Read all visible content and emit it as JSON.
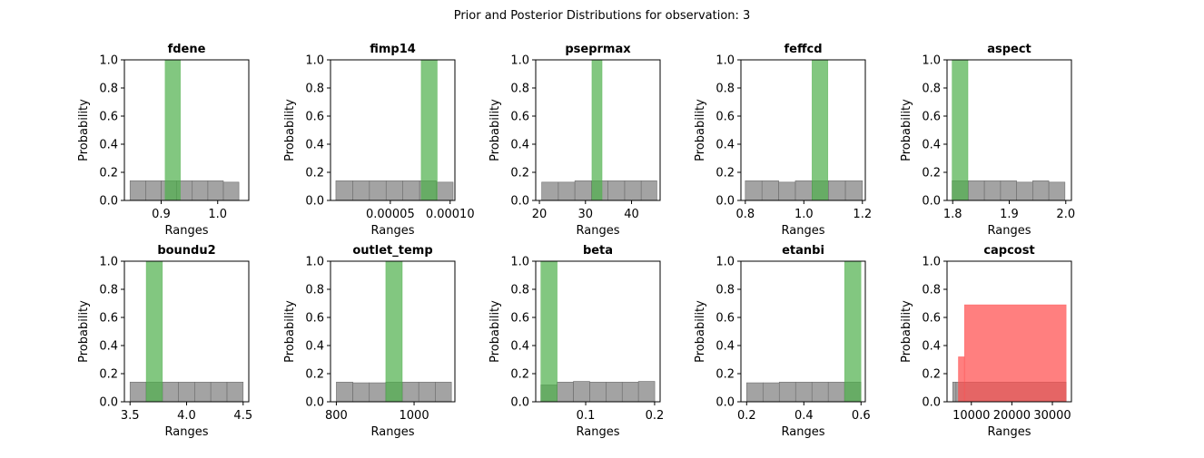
{
  "figure_title": "Prior and Posterior Distributions for observation: 3",
  "colors": {
    "prior": "#808080",
    "posterior_normal": "#4daf4a",
    "posterior_highlight": "#ff4d4d"
  },
  "chart_data": [
    {
      "type": "bar",
      "title": "fdene",
      "xlabel": "Ranges",
      "ylabel": "Probability",
      "xlim": [
        0.835,
        1.055
      ],
      "ylim": [
        0,
        1.0
      ],
      "xticks": [
        {
          "v": 0.9,
          "label": "0.9"
        },
        {
          "v": 1.0,
          "label": "1.0"
        }
      ],
      "yticks": [
        {
          "v": 0,
          "label": "0.0"
        },
        {
          "v": 0.2,
          "label": "0.2"
        },
        {
          "v": 0.4,
          "label": "0.4"
        },
        {
          "v": 0.6,
          "label": "0.6"
        },
        {
          "v": 0.8,
          "label": "0.8"
        },
        {
          "v": 1.0,
          "label": "1.0"
        }
      ],
      "prior": {
        "edges": [
          0.845,
          0.8725,
          0.9,
          0.9275,
          0.955,
          0.9825,
          1.01,
          1.0375
        ],
        "values": [
          0.14,
          0.14,
          0.14,
          0.14,
          0.14,
          0.14,
          0.13
        ]
      },
      "posterior": {
        "color": "normal",
        "edges": [
          0.907,
          0.934
        ],
        "values": [
          1.0
        ]
      }
    },
    {
      "type": "bar",
      "title": "fimp14",
      "xlabel": "Ranges",
      "ylabel": "Probability",
      "xlim": [
        0.0,
        0.000104
      ],
      "ylim": [
        0,
        1.0
      ],
      "xticks": [
        {
          "v": 5e-05,
          "label": "0.00005"
        },
        {
          "v": 0.0001,
          "label": "0.00010"
        }
      ],
      "yticks": [
        {
          "v": 0,
          "label": "0.0"
        },
        {
          "v": 0.2,
          "label": "0.2"
        },
        {
          "v": 0.4,
          "label": "0.4"
        },
        {
          "v": 0.6,
          "label": "0.6"
        },
        {
          "v": 0.8,
          "label": "0.8"
        },
        {
          "v": 1.0,
          "label": "1.0"
        }
      ],
      "prior": {
        "edges": [
          4.5e-06,
          1.85e-05,
          3.25e-05,
          4.65e-05,
          6.05e-05,
          7.45e-05,
          8.85e-05,
          0.0001025
        ],
        "values": [
          0.14,
          0.14,
          0.14,
          0.14,
          0.14,
          0.14,
          0.13
        ]
      },
      "posterior": {
        "color": "normal",
        "edges": [
          7.58e-05,
          8.92e-05
        ],
        "values": [
          1.0
        ]
      }
    },
    {
      "type": "bar",
      "title": "pseprmax",
      "xlabel": "Ranges",
      "ylabel": "Probability",
      "xlim": [
        19.2,
        46.2
      ],
      "ylim": [
        0,
        1.0
      ],
      "xticks": [
        {
          "v": 20,
          "label": "20"
        },
        {
          "v": 30,
          "label": "30"
        },
        {
          "v": 40,
          "label": "40"
        }
      ],
      "yticks": [
        {
          "v": 0,
          "label": "0.0"
        },
        {
          "v": 0.2,
          "label": "0.2"
        },
        {
          "v": 0.4,
          "label": "0.4"
        },
        {
          "v": 0.6,
          "label": "0.6"
        },
        {
          "v": 0.8,
          "label": "0.8"
        },
        {
          "v": 1.0,
          "label": "1.0"
        }
      ],
      "prior": {
        "edges": [
          20.5,
          24.1,
          27.7,
          31.3,
          34.9,
          38.5,
          42.1,
          45.5
        ],
        "values": [
          0.13,
          0.13,
          0.14,
          0.14,
          0.14,
          0.14,
          0.14
        ]
      },
      "posterior": {
        "color": "normal",
        "edges": [
          31.4,
          33.6
        ],
        "values": [
          1.0
        ]
      }
    },
    {
      "type": "bar",
      "title": "feffcd",
      "xlabel": "Ranges",
      "ylabel": "Probability",
      "xlim": [
        0.785,
        1.21
      ],
      "ylim": [
        0,
        1.0
      ],
      "xticks": [
        {
          "v": 0.8,
          "label": "0.8"
        },
        {
          "v": 1.0,
          "label": "1.0"
        },
        {
          "v": 1.2,
          "label": "1.2"
        }
      ],
      "yticks": [
        {
          "v": 0,
          "label": "0.0"
        },
        {
          "v": 0.2,
          "label": "0.2"
        },
        {
          "v": 0.4,
          "label": "0.4"
        },
        {
          "v": 0.6,
          "label": "0.6"
        },
        {
          "v": 0.8,
          "label": "0.8"
        },
        {
          "v": 1.0,
          "label": "1.0"
        }
      ],
      "prior": {
        "edges": [
          0.8,
          0.857,
          0.914,
          0.971,
          1.028,
          1.085,
          1.142,
          1.2
        ],
        "values": [
          0.14,
          0.14,
          0.13,
          0.14,
          0.14,
          0.14,
          0.14
        ]
      },
      "posterior": {
        "color": "normal",
        "edges": [
          1.028,
          1.082
        ],
        "values": [
          1.0
        ]
      }
    },
    {
      "type": "bar",
      "title": "aspect",
      "xlabel": "Ranges",
      "ylabel": "Probability",
      "xlim": [
        1.79,
        2.01
      ],
      "ylim": [
        0,
        1.0
      ],
      "xticks": [
        {
          "v": 1.8,
          "label": "1.8"
        },
        {
          "v": 1.9,
          "label": "1.9"
        },
        {
          "v": 2.0,
          "label": "2.0"
        }
      ],
      "yticks": [
        {
          "v": 0,
          "label": "0.0"
        },
        {
          "v": 0.2,
          "label": "0.2"
        },
        {
          "v": 0.4,
          "label": "0.4"
        },
        {
          "v": 0.6,
          "label": "0.6"
        },
        {
          "v": 0.8,
          "label": "0.8"
        },
        {
          "v": 1.0,
          "label": "1.0"
        }
      ],
      "prior": {
        "edges": [
          1.799,
          1.8275,
          1.856,
          1.8845,
          1.913,
          1.9415,
          1.97,
          1.9985
        ],
        "values": [
          0.14,
          0.14,
          0.14,
          0.14,
          0.13,
          0.14,
          0.13
        ]
      },
      "posterior": {
        "color": "normal",
        "edges": [
          1.799,
          1.827
        ],
        "values": [
          1.0
        ]
      }
    },
    {
      "type": "bar",
      "title": "boundu2",
      "xlabel": "Ranges",
      "ylabel": "Probability",
      "xlim": [
        3.45,
        4.55
      ],
      "ylim": [
        0,
        1.0
      ],
      "xticks": [
        {
          "v": 3.5,
          "label": "3.5"
        },
        {
          "v": 4.0,
          "label": "4.0"
        },
        {
          "v": 4.5,
          "label": "4.5"
        }
      ],
      "yticks": [
        {
          "v": 0,
          "label": "0.0"
        },
        {
          "v": 0.2,
          "label": "0.2"
        },
        {
          "v": 0.4,
          "label": "0.4"
        },
        {
          "v": 0.6,
          "label": "0.6"
        },
        {
          "v": 0.8,
          "label": "0.8"
        },
        {
          "v": 1.0,
          "label": "1.0"
        }
      ],
      "prior": {
        "edges": [
          3.5,
          3.643,
          3.786,
          3.929,
          4.071,
          4.214,
          4.357,
          4.5
        ],
        "values": [
          0.14,
          0.14,
          0.14,
          0.14,
          0.14,
          0.14,
          0.14
        ]
      },
      "posterior": {
        "color": "normal",
        "edges": [
          3.643,
          3.786
        ],
        "values": [
          1.0
        ]
      }
    },
    {
      "type": "bar",
      "title": "outlet_temp",
      "xlabel": "Ranges",
      "ylabel": "Probability",
      "xlim": [
        785,
        1105
      ],
      "ylim": [
        0,
        1.0
      ],
      "xticks": [
        {
          "v": 800,
          "label": "800"
        },
        {
          "v": 1000,
          "label": "1000"
        }
      ],
      "yticks": [
        {
          "v": 0,
          "label": "0.0"
        },
        {
          "v": 0.2,
          "label": "0.2"
        },
        {
          "v": 0.4,
          "label": "0.4"
        },
        {
          "v": 0.6,
          "label": "0.6"
        },
        {
          "v": 0.8,
          "label": "0.8"
        },
        {
          "v": 1.0,
          "label": "1.0"
        }
      ],
      "prior": {
        "edges": [
          800,
          842.4,
          884.8,
          927.2,
          969.6,
          1012,
          1054.4,
          1096
        ],
        "values": [
          0.14,
          0.135,
          0.135,
          0.14,
          0.14,
          0.14,
          0.14
        ]
      },
      "posterior": {
        "color": "normal",
        "edges": [
          927.2,
          969.6
        ],
        "values": [
          1.0
        ]
      }
    },
    {
      "type": "bar",
      "title": "beta",
      "xlabel": "Ranges",
      "ylabel": "Probability",
      "xlim": [
        0.0275,
        0.208
      ],
      "ylim": [
        0,
        1.0
      ],
      "xticks": [
        {
          "v": 0.1,
          "label": "0.1"
        },
        {
          "v": 0.2,
          "label": "0.2"
        }
      ],
      "yticks": [
        {
          "v": 0,
          "label": "0.0"
        },
        {
          "v": 0.2,
          "label": "0.2"
        },
        {
          "v": 0.4,
          "label": "0.4"
        },
        {
          "v": 0.6,
          "label": "0.6"
        },
        {
          "v": 0.8,
          "label": "0.8"
        },
        {
          "v": 1.0,
          "label": "1.0"
        }
      ],
      "prior": {
        "edges": [
          0.035,
          0.0586,
          0.0822,
          0.1058,
          0.1294,
          0.153,
          0.1766,
          0.2002
        ],
        "values": [
          0.12,
          0.14,
          0.145,
          0.14,
          0.14,
          0.14,
          0.145
        ]
      },
      "posterior": {
        "color": "normal",
        "edges": [
          0.035,
          0.0586
        ],
        "values": [
          1.0
        ]
      }
    },
    {
      "type": "bar",
      "title": "etanbi",
      "xlabel": "Ranges",
      "ylabel": "Probability",
      "xlim": [
        0.18,
        0.615
      ],
      "ylim": [
        0,
        1.0
      ],
      "xticks": [
        {
          "v": 0.2,
          "label": "0.2"
        },
        {
          "v": 0.4,
          "label": "0.4"
        },
        {
          "v": 0.6,
          "label": "0.6"
        }
      ],
      "yticks": [
        {
          "v": 0,
          "label": "0.0"
        },
        {
          "v": 0.2,
          "label": "0.2"
        },
        {
          "v": 0.4,
          "label": "0.4"
        },
        {
          "v": 0.6,
          "label": "0.6"
        },
        {
          "v": 0.8,
          "label": "0.8"
        },
        {
          "v": 1.0,
          "label": "1.0"
        }
      ],
      "prior": {
        "edges": [
          0.2,
          0.2571,
          0.3142,
          0.3713,
          0.4284,
          0.4855,
          0.5426,
          0.5997
        ],
        "values": [
          0.135,
          0.135,
          0.14,
          0.14,
          0.14,
          0.14,
          0.14
        ]
      },
      "posterior": {
        "color": "normal",
        "edges": [
          0.5426,
          0.5997
        ],
        "values": [
          1.0
        ]
      }
    },
    {
      "type": "bar",
      "title": "capcost",
      "xlabel": "Ranges",
      "ylabel": "Probability",
      "xlim": [
        4000,
        34700
      ],
      "ylim": [
        0,
        1.0
      ],
      "xticks": [
        {
          "v": 10000,
          "label": "10000"
        },
        {
          "v": 20000,
          "label": "20000"
        },
        {
          "v": 30000,
          "label": "30000"
        }
      ],
      "yticks": [
        {
          "v": 0,
          "label": "0.0"
        },
        {
          "v": 0.2,
          "label": "0.2"
        },
        {
          "v": 0.4,
          "label": "0.4"
        },
        {
          "v": 0.6,
          "label": "0.6"
        },
        {
          "v": 0.8,
          "label": "0.8"
        },
        {
          "v": 1.0,
          "label": "1.0"
        }
      ],
      "prior": {
        "edges": [
          5400,
          6200,
          33400
        ],
        "values": [
          0.14,
          0.14
        ]
      },
      "posterior": {
        "color": "highlight",
        "edges": [
          6800,
          8300,
          33400
        ],
        "values": [
          0.32,
          0.69
        ]
      }
    }
  ]
}
